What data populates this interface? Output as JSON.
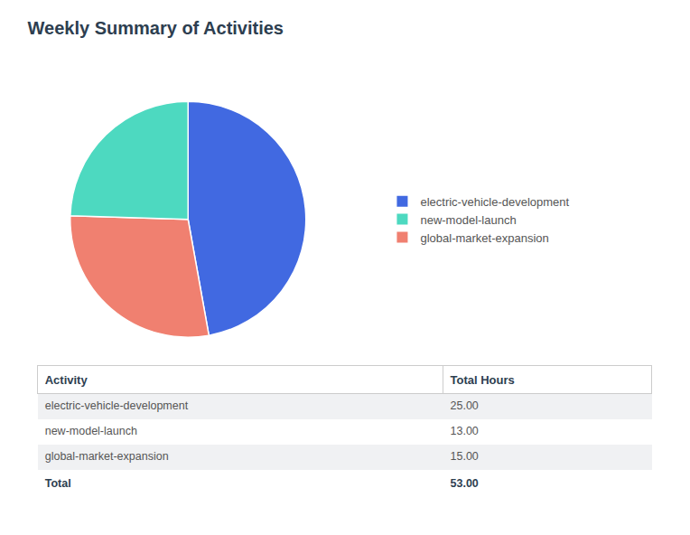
{
  "chart_data": [
    {
      "type": "pie",
      "title": "Weekly Summary of Activities",
      "categories": [
        "electric-vehicle-development",
        "global-market-expansion",
        "new-model-launch"
      ],
      "values": [
        25.0,
        15.0,
        13.0
      ],
      "colors": [
        "#4169E1",
        "#F08070",
        "#4DD9C0"
      ],
      "data_labels": false,
      "legend": "right"
    },
    {
      "type": "table",
      "columns": [
        "Activity",
        "Total Hours"
      ],
      "categories": [
        "electric-vehicle-development",
        "new-model-launch",
        "global-market-expansion"
      ],
      "values": [
        25.0,
        13.0,
        15.0
      ],
      "value_labels": [
        "25.00",
        "13.00",
        "15.00"
      ],
      "colors": [
        "#4169E1",
        "#4DD9C0",
        "#F08070"
      ],
      "total_label": "Total",
      "total": 53.0,
      "total_value_label": "53.00"
    }
  ]
}
